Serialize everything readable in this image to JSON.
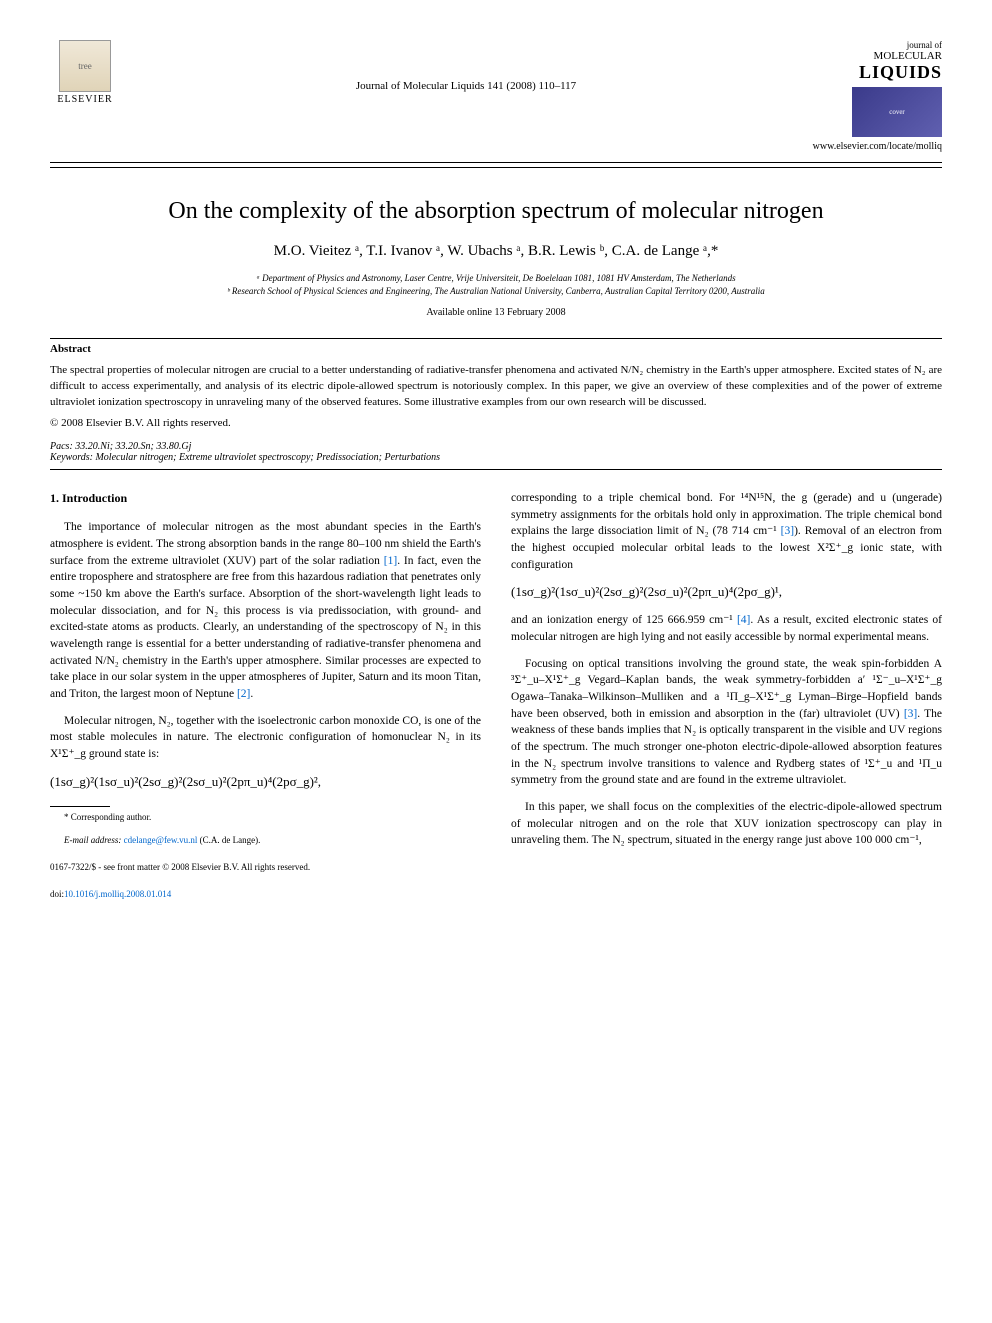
{
  "publisher": {
    "name": "ELSEVIER",
    "logo_alt": "tree"
  },
  "journal_ref": "Journal of Molecular Liquids 141 (2008) 110–117",
  "journal_brand": {
    "line1": "journal of",
    "line2": "MOLECULAR",
    "line3": "LIQUIDS",
    "cover_alt": "cover",
    "url": "www.elsevier.com/locate/molliq"
  },
  "title": "On the complexity of the absorption spectrum of molecular nitrogen",
  "authors": "M.O. Vieitez ᵃ, T.I. Ivanov ᵃ, W. Ubachs ᵃ, B.R. Lewis ᵇ, C.A. de Lange ᵃ,*",
  "affiliations": {
    "a": "ᵃ Department of Physics and Astronomy, Laser Centre, Vrije Universiteit, De Boelelaan 1081, 1081 HV Amsterdam, The Netherlands",
    "b": "ᵇ Research School of Physical Sciences and Engineering, The Australian National University, Canberra, Australian Capital Territory 0200, Australia"
  },
  "available": "Available online 13 February 2008",
  "abstract": {
    "heading": "Abstract",
    "body": "The spectral properties of molecular nitrogen are crucial to a better understanding of radiative-transfer phenomena and activated N/N₂ chemistry in the Earth's upper atmosphere. Excited states of N₂ are difficult to access experimentally, and analysis of its electric dipole-allowed spectrum is notoriously complex. In this paper, we give an overview of these complexities and of the power of extreme ultraviolet ionization spectroscopy in unraveling many of the observed features. Some illustrative examples from our own research will be discussed.",
    "copyright": "© 2008 Elsevier B.V. All rights reserved."
  },
  "pacs": {
    "label": "Pacs:",
    "value": "33.20.Ni; 33.20.Sn; 33.80.Gj"
  },
  "keywords": {
    "label": "Keywords:",
    "value": "Molecular nitrogen; Extreme ultraviolet spectroscopy; Predissociation; Perturbations"
  },
  "section1": {
    "heading": "1. Introduction",
    "p1a": "The importance of molecular nitrogen as the most abundant species in the Earth's atmosphere is evident. The strong absorption bands in the range 80–100 nm shield the Earth's surface from the extreme ultraviolet (XUV) part of the solar radiation ",
    "ref1": "[1]",
    "p1b": ". In fact, even the entire troposphere and stratosphere are free from this hazardous radiation that penetrates only some ~150 km above the Earth's surface. Absorption of the short-wavelength light leads to molecular dissociation, and for N₂ this process is via predissociation, with ground- and excited-state atoms as products. Clearly, an understanding of the spectroscopy of N₂ in this wavelength range is essential for a better understanding of radiative-transfer phenomena and activated N/N₂ chemistry in the Earth's upper atmosphere. Similar processes are expected to take place in our solar system in the upper atmospheres of Jupiter, Saturn and its moon Titan, and Triton, the largest moon of Neptune ",
    "ref2": "[2]",
    "p1c": ".",
    "p2": "Molecular nitrogen, N₂, together with the isoelectronic carbon monoxide CO, is one of the most stable molecules in nature. The electronic configuration of homonuclear N₂ in its X¹Σ⁺_g ground state is:",
    "formula1": "(1sσ_g)²(1sσ_u)²(2sσ_g)²(2sσ_u)²(2pπ_u)⁴(2pσ_g)²,",
    "p3a": "corresponding to a triple chemical bond. For ¹⁴N¹⁵N, the g (gerade) and u (ungerade) symmetry assignments for the orbitals hold only in approximation. The triple chemical bond explains the large dissociation limit of N₂ (78 714 cm⁻¹ ",
    "ref3": "[3]",
    "p3b": "). Removal of an electron from the highest occupied molecular orbital leads to the lowest X²Σ⁺_g ionic state, with configuration",
    "formula2": "(1sσ_g)²(1sσ_u)²(2sσ_g)²(2sσ_u)²(2pπ_u)⁴(2pσ_g)¹,",
    "p4a": "and an ionization energy of 125 666.959 cm⁻¹ ",
    "ref4": "[4]",
    "p4b": ". As a result, excited electronic states of molecular nitrogen are high lying and not easily accessible by normal experimental means.",
    "p5a": "Focusing on optical transitions involving the ground state, the weak spin-forbidden A ³Σ⁺_u–X¹Σ⁺_g Vegard–Kaplan bands, the weak symmetry-forbidden a′ ¹Σ⁻_u–X¹Σ⁺_g Ogawa–Tanaka–Wilkinson–Mulliken and a ¹Π_g–X¹Σ⁺_g Lyman–Birge–Hopfield bands have been observed, both in emission and absorption in the (far) ultraviolet (UV) ",
    "ref3b": "[3]",
    "p5b": ". The weakness of these bands implies that N₂ is optically transparent in the visible and UV regions of the spectrum. The much stronger one-photon electric-dipole-allowed absorption features in the N₂ spectrum involve transitions to valence and Rydberg states of ¹Σ⁺_u and ¹Π_u symmetry from the ground state and are found in the extreme ultraviolet.",
    "p6": "In this paper, we shall focus on the complexities of the electric-dipole-allowed spectrum of molecular nitrogen and on the role that XUV ionization spectroscopy can play in unraveling them. The N₂ spectrum, situated in the energy range just above 100 000 cm⁻¹,"
  },
  "footnote": {
    "corr_label": "* Corresponding author.",
    "email_label": "E-mail address:",
    "email": "cdelange@few.vu.nl",
    "email_who": "(C.A. de Lange)."
  },
  "footer": {
    "line1": "0167-7322/$ - see front matter © 2008 Elsevier B.V. All rights reserved.",
    "doi_label": "doi:",
    "doi": "10.1016/j.molliq.2008.01.014"
  },
  "colors": {
    "link": "#0066cc",
    "text": "#000000",
    "bg": "#ffffff"
  }
}
